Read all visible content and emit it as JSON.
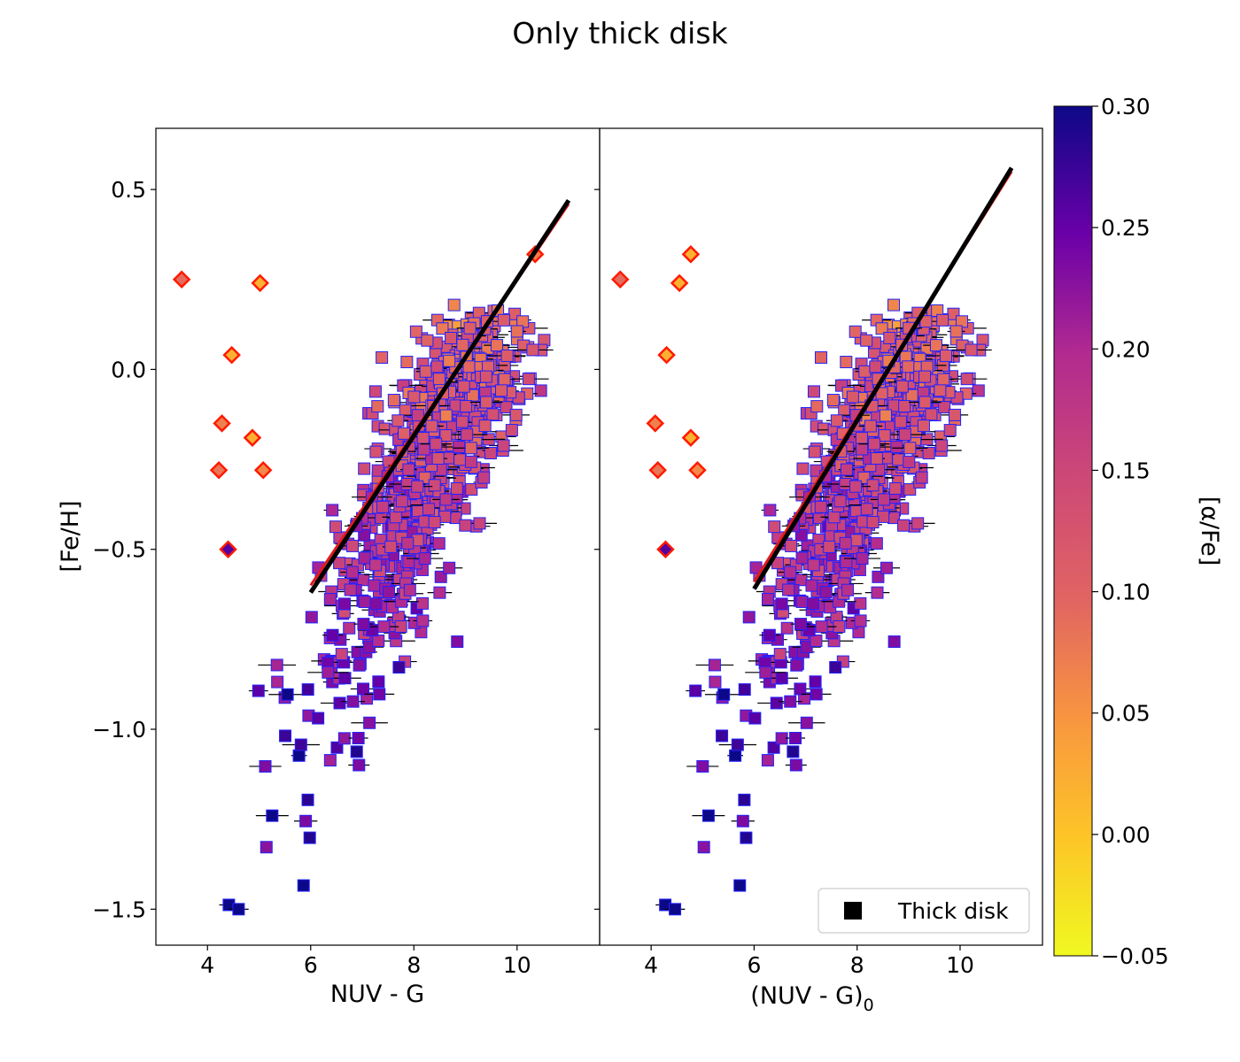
{
  "figure": {
    "title": "Only thick disk",
    "legend_label": "Thick disk",
    "legend_position": "lower right of right panel"
  },
  "colors": {
    "line_fit": "#000000",
    "line_red": "#e41a1c",
    "marker_edge": "#2222ff",
    "outlier_edge": "#ff1a00"
  },
  "chart_data": [
    {
      "type": "scatter",
      "name_key": "left",
      "xlabel": "NUV - G",
      "ylabel": "[Fe/H]",
      "xlim": [
        3.0,
        11.6
      ],
      "ylim": [
        -1.6,
        0.67
      ],
      "xticks": [
        4,
        6,
        8,
        10
      ],
      "yticks": [
        0.5,
        0.0,
        -0.5,
        -1.0,
        -1.5
      ],
      "ytick_labels": [
        "0.5",
        "0.0",
        "−0.5",
        "−1.0",
        "−1.5"
      ],
      "fit_line": {
        "x": [
          6.0,
          11.0
        ],
        "y": [
          -0.62,
          0.47
        ]
      },
      "red_line": {
        "x": [
          6.0,
          11.0
        ],
        "y": [
          -0.6,
          0.46
        ]
      }
    },
    {
      "type": "scatter",
      "name_key": "right",
      "xlabel": "(NUV - G)",
      "xlabel_sub": "0",
      "xlim": [
        3.0,
        11.6
      ],
      "ylim": [
        -1.6,
        0.67
      ],
      "xticks": [
        4,
        6,
        8,
        10
      ],
      "fit_line": {
        "x": [
          6.0,
          11.0
        ],
        "y": [
          -0.61,
          0.56
        ]
      },
      "red_line": {
        "x": [
          6.0,
          11.0
        ],
        "y": [
          -0.59,
          0.55
        ]
      }
    }
  ],
  "colorbar": {
    "label": "[α/Fe]",
    "min": -0.05,
    "max": 0.3,
    "ticks": [
      0.3,
      0.25,
      0.2,
      0.15,
      0.1,
      0.05,
      0.0,
      -0.05
    ],
    "tick_labels": [
      "0.30",
      "0.25",
      "0.20",
      "0.15",
      "0.10",
      "0.05",
      "0.00",
      "−0.05"
    ]
  },
  "outliers": {
    "left": [
      {
        "x": 3.5,
        "y": 0.25,
        "a": 0.09
      },
      {
        "x": 5.02,
        "y": 0.24,
        "a": 0.02
      },
      {
        "x": 4.47,
        "y": 0.04,
        "a": 0.02
      },
      {
        "x": 4.28,
        "y": -0.15,
        "a": 0.07
      },
      {
        "x": 4.87,
        "y": -0.19,
        "a": 0.02
      },
      {
        "x": 4.22,
        "y": -0.28,
        "a": 0.08
      },
      {
        "x": 5.08,
        "y": -0.28,
        "a": 0.06
      },
      {
        "x": 4.4,
        "y": -0.5,
        "a": 0.26
      },
      {
        "x": 10.35,
        "y": 0.32,
        "a": 0.07
      }
    ],
    "right": [
      {
        "x": 3.4,
        "y": 0.25,
        "a": 0.09
      },
      {
        "x": 4.55,
        "y": 0.24,
        "a": 0.02
      },
      {
        "x": 4.77,
        "y": 0.32,
        "a": 0.02
      },
      {
        "x": 4.3,
        "y": 0.04,
        "a": 0.02
      },
      {
        "x": 4.08,
        "y": -0.15,
        "a": 0.07
      },
      {
        "x": 4.77,
        "y": -0.19,
        "a": 0.02
      },
      {
        "x": 4.13,
        "y": -0.28,
        "a": 0.08
      },
      {
        "x": 4.9,
        "y": -0.28,
        "a": 0.06
      },
      {
        "x": 4.28,
        "y": -0.5,
        "a": 0.26
      }
    ]
  }
}
